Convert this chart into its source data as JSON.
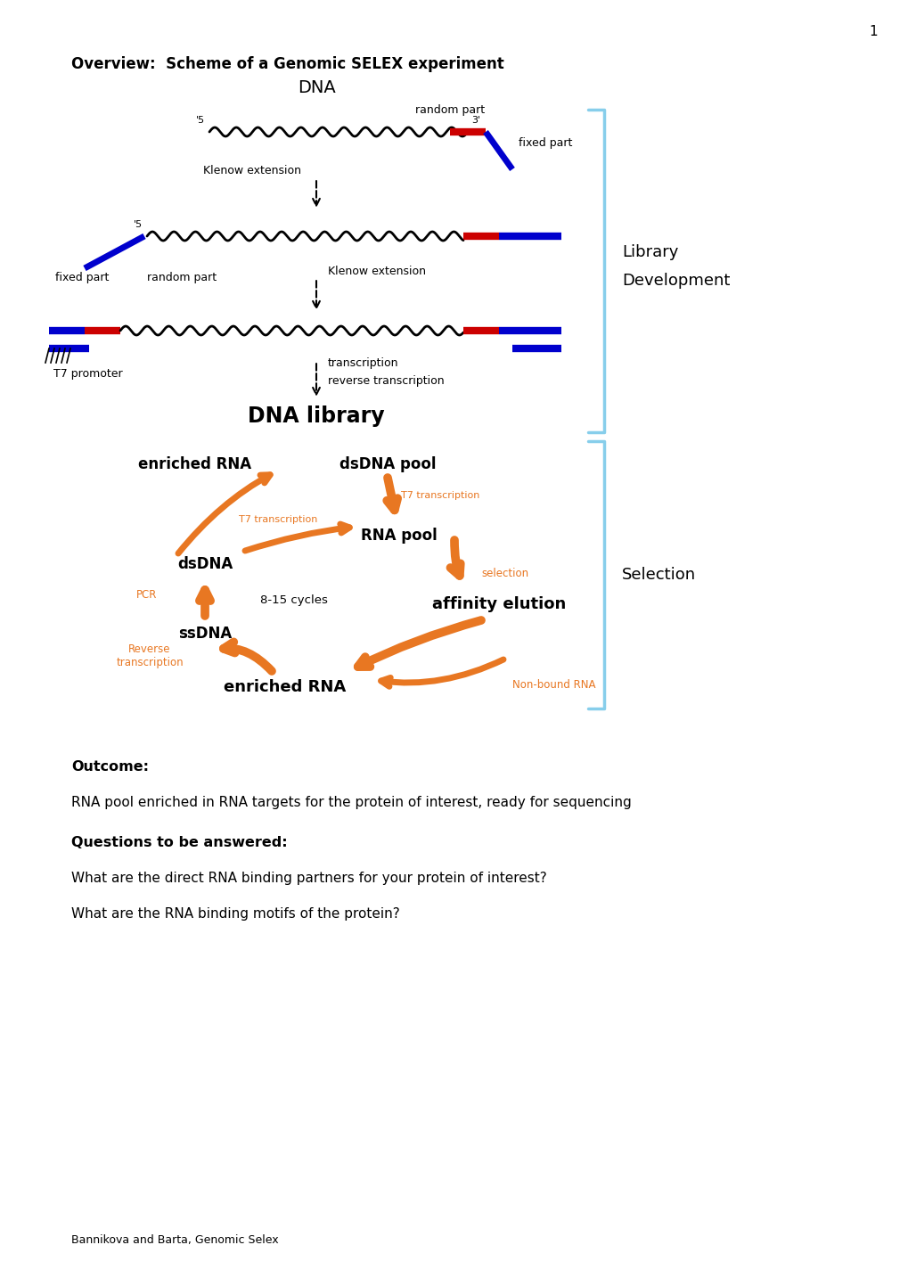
{
  "title": "Overview:  Scheme of a Genomic SELEX experiment",
  "page_number": "1",
  "orange": "#E87722",
  "blue": "#0000CD",
  "red": "#CC0000",
  "bracket_color": "#87CEEB",
  "outcome_label": "Outcome:",
  "outcome_text": "RNA pool enriched in RNA targets for the protein of interest, ready for sequencing",
  "questions_label": "Questions to be answered:",
  "question1": "What are the direct RNA binding partners for your protein of interest?",
  "question2": "What are the RNA binding motifs of the protein?",
  "footer": "Bannikova and Barta, Genomic Selex"
}
